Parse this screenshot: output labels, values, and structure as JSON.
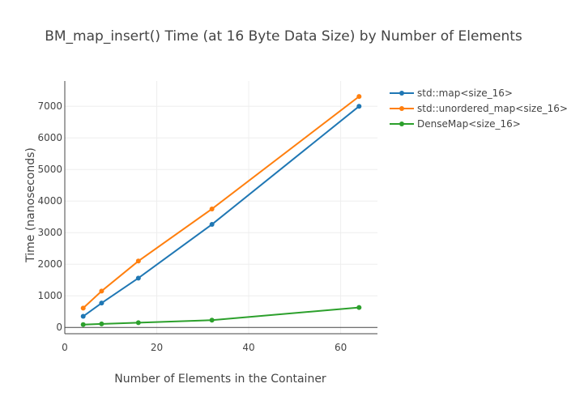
{
  "chart_data": {
    "type": "line",
    "title": "BM_map_insert() Time (at 16 Byte Data Size) by Number of Elements",
    "xlabel": "Number of Elements in the Container",
    "ylabel": "Time (nanoseconds)",
    "xlim": [
      0,
      68
    ],
    "ylim": [
      -200,
      7800
    ],
    "xticks": [
      0,
      20,
      40,
      60
    ],
    "yticks": [
      0,
      1000,
      2000,
      3000,
      4000,
      5000,
      6000,
      7000
    ],
    "grid": true,
    "legend_position": "top-right",
    "x": [
      4,
      8,
      16,
      32,
      64
    ],
    "series": [
      {
        "name": "std::map<size_16>",
        "color": "#1f77b4",
        "values": [
          350,
          770,
          1560,
          3260,
          7000
        ]
      },
      {
        "name": "std::unordered_map<size_16>",
        "color": "#ff7f0e",
        "values": [
          610,
          1150,
          2100,
          3750,
          7310
        ]
      },
      {
        "name": "DenseMap<size_16>",
        "color": "#2ca02c",
        "values": [
          90,
          110,
          150,
          230,
          630
        ]
      }
    ]
  }
}
